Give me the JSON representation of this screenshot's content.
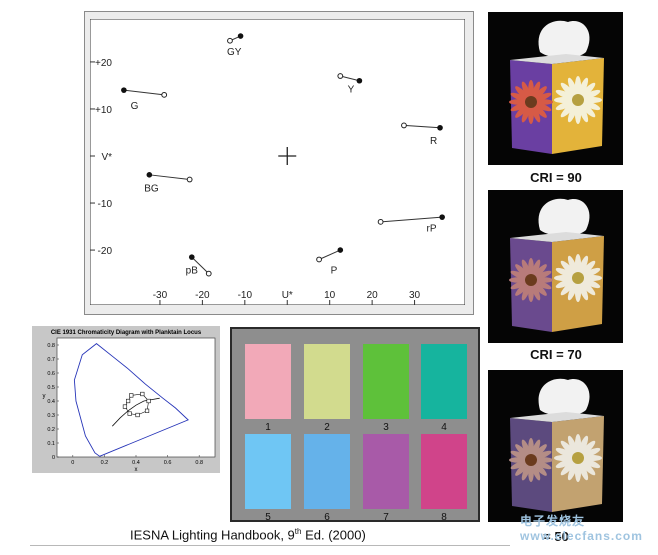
{
  "chart_data": [
    {
      "type": "scatter",
      "xlabel": "U*",
      "ylabel": "V*",
      "xlim": [
        -38,
        40
      ],
      "ylim": [
        -27,
        27
      ],
      "xticks": [
        -30,
        -20,
        -10,
        0,
        10,
        20,
        30
      ],
      "xtick_labels": [
        "-30",
        "-20",
        "-10",
        "U*",
        "10",
        "20",
        "30"
      ],
      "yticks": [
        20,
        10,
        0,
        -10,
        -20
      ],
      "ytick_labels": [
        "+20",
        "+10",
        "V*",
        "-10",
        "-20"
      ],
      "origin_marker": "+",
      "shifts": [
        {
          "label": "GY",
          "from": [
            -13.5,
            24.5
          ],
          "to": [
            -11,
            25.5
          ],
          "label_at": [
            -12.5,
            21.5
          ]
        },
        {
          "label": "Y",
          "from": [
            12.5,
            17
          ],
          "to": [
            17,
            16
          ],
          "label_at": [
            15,
            13.5
          ]
        },
        {
          "label": "G",
          "from": [
            -29,
            13
          ],
          "to": [
            -38.5,
            14
          ],
          "label_at": [
            -36,
            10
          ]
        },
        {
          "label": "R",
          "from": [
            27.5,
            6.5
          ],
          "to": [
            36,
            6
          ],
          "label_at": [
            34.5,
            2.5
          ]
        },
        {
          "label": "BG",
          "from": [
            -23,
            -5
          ],
          "to": [
            -32.5,
            -4
          ],
          "label_at": [
            -32,
            -7.5
          ]
        },
        {
          "label": "rP",
          "from": [
            22,
            -14
          ],
          "to": [
            36.5,
            -13
          ],
          "label_at": [
            34,
            -16
          ]
        },
        {
          "label": "pB",
          "from": [
            -18.5,
            -25
          ],
          "to": [
            -22.5,
            -21.5
          ],
          "label_at": [
            -22.5,
            -25
          ]
        },
        {
          "label": "P",
          "from": [
            7.5,
            -22
          ],
          "to": [
            12.5,
            -20
          ],
          "label_at": [
            11,
            -25
          ]
        }
      ]
    },
    {
      "type": "line",
      "title": "CIE 1931 Chromaticity Diagram with Planktain Locus",
      "xlabel": "x",
      "ylabel": "y",
      "xlim": [
        -0.1,
        0.9
      ],
      "ylim": [
        0,
        0.85
      ],
      "xticks": [
        0,
        0.2,
        0.4,
        0.6,
        0.8
      ],
      "yticks": [
        0,
        0.1,
        0.2,
        0.3,
        0.4,
        0.5,
        0.6,
        0.7,
        0.8
      ],
      "series": [
        {
          "values_x": [
            0.17,
            0.14,
            0.08,
            0.02,
            0.01,
            0.06,
            0.15,
            0.25,
            0.35,
            0.46,
            0.57,
            0.65,
            0.73,
            0.17
          ],
          "values_y": [
            0.005,
            0.03,
            0.15,
            0.4,
            0.55,
            0.73,
            0.81,
            0.72,
            0.63,
            0.52,
            0.42,
            0.35,
            0.265,
            0.005
          ]
        },
        {
          "values_x": [
            0.25,
            0.3,
            0.35,
            0.4,
            0.45,
            0.5,
            0.55
          ],
          "values_y": [
            0.22,
            0.28,
            0.33,
            0.37,
            0.4,
            0.41,
            0.42
          ]
        }
      ],
      "sample_points_x": [
        0.37,
        0.44,
        0.48,
        0.47,
        0.41,
        0.36,
        0.33,
        0.35
      ],
      "sample_points_y": [
        0.44,
        0.45,
        0.4,
        0.33,
        0.3,
        0.31,
        0.36,
        0.4
      ]
    }
  ],
  "swatches": [
    {
      "number": "1",
      "color": "#f2a9b8"
    },
    {
      "number": "2",
      "color": "#d2db8e"
    },
    {
      "number": "3",
      "color": "#5ec13a"
    },
    {
      "number": "4",
      "color": "#16b49e"
    },
    {
      "number": "5",
      "color": "#6fc6f4"
    },
    {
      "number": "6",
      "color": "#65b2ea"
    },
    {
      "number": "7",
      "color": "#a85aa8"
    },
    {
      "number": "8",
      "color": "#d0448a"
    }
  ],
  "photos": [
    {
      "cri_label": "CRI = 90",
      "left_face": "#6a3fa2",
      "right_face": "#e3b33a",
      "flower_left": "#d65a46",
      "flower_right": "#f4f0d8"
    },
    {
      "cri_label": "CRI = 70",
      "left_face": "#6a4a8e",
      "right_face": "#cf9f45",
      "flower_left": "#b87b7a",
      "flower_right": "#efeadb"
    },
    {
      "cri_label": "= 50",
      "left_face": "#5c4a7e",
      "right_face": "#c2a270",
      "flower_left": "#b48d86",
      "flower_right": "#ebe7dc"
    }
  ],
  "footer": {
    "before_sup": "IESNA Lighting Handbook, 9",
    "sup": "th",
    "after_sup": " Ed. (2000)"
  },
  "watermark": "电子发烧友 www.elecfans.com"
}
